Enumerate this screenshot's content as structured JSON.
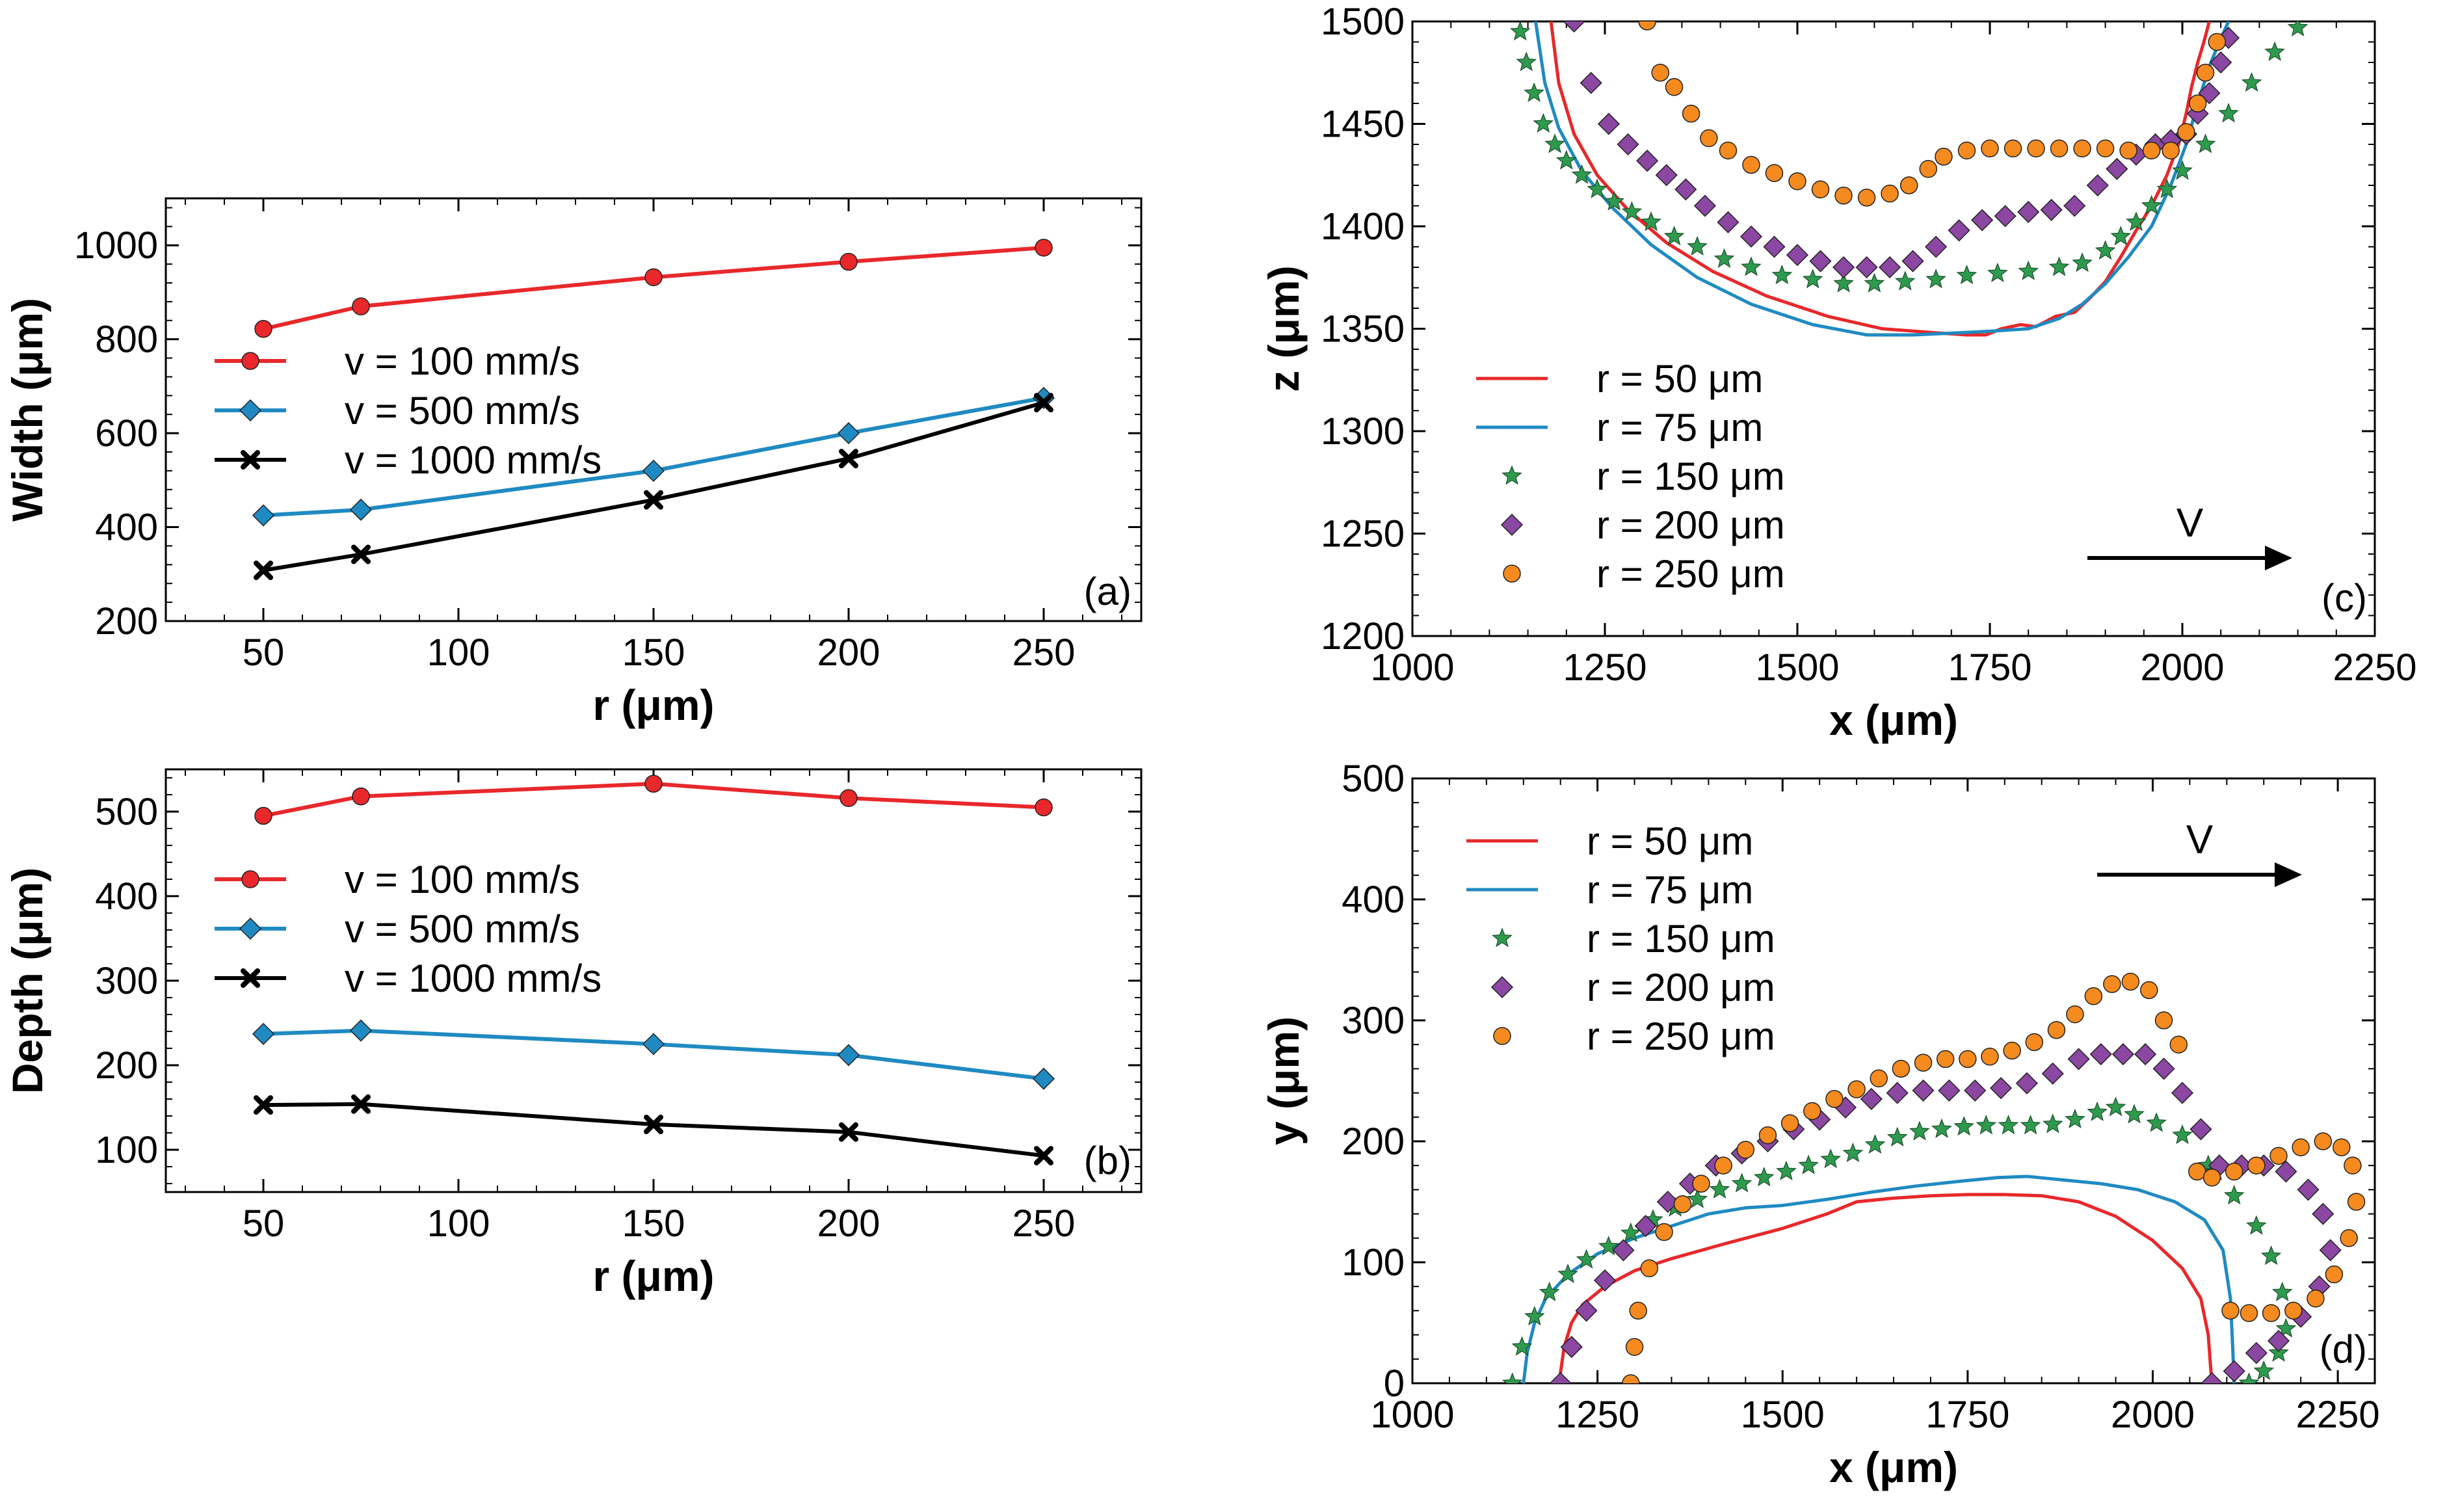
{
  "chart_data": [
    {
      "id": "a",
      "type": "line",
      "panel_label": "(a)",
      "xlabel": "r (μm)",
      "ylabel": "Width (μm)",
      "xlim": [
        25,
        275
      ],
      "ylim": [
        200,
        1100
      ],
      "xticks": [
        50,
        100,
        150,
        200,
        250
      ],
      "yticks": [
        200,
        400,
        600,
        800,
        1000
      ],
      "legend_position": "center-left",
      "series": [
        {
          "name": "v = 100 mm/s",
          "color": "#e8282b",
          "marker": "circle",
          "x": [
            50,
            75,
            150,
            200,
            250
          ],
          "y": [
            822,
            870,
            932,
            965,
            995
          ]
        },
        {
          "name": "v = 500 mm/s",
          "color": "#1f8ac2",
          "marker": "diamond",
          "x": [
            50,
            75,
            150,
            200,
            250
          ],
          "y": [
            425,
            437,
            520,
            600,
            675
          ]
        },
        {
          "name": "v = 1000 mm/s",
          "color": "#000000",
          "marker": "x",
          "x": [
            50,
            75,
            150,
            200,
            250
          ],
          "y": [
            308,
            342,
            458,
            546,
            665
          ]
        }
      ]
    },
    {
      "id": "b",
      "type": "line",
      "panel_label": "(b)",
      "xlabel": "r (μm)",
      "ylabel": "Depth (μm)",
      "xlim": [
        25,
        275
      ],
      "ylim": [
        50,
        550
      ],
      "xticks": [
        50,
        100,
        150,
        200,
        250
      ],
      "yticks": [
        100,
        200,
        300,
        400,
        500
      ],
      "legend_position": "center-left",
      "series": [
        {
          "name": "v = 100 mm/s",
          "color": "#e8282b",
          "marker": "circle",
          "x": [
            50,
            75,
            150,
            200,
            250
          ],
          "y": [
            495,
            518,
            533,
            516,
            505
          ]
        },
        {
          "name": "v = 500 mm/s",
          "color": "#1f8ac2",
          "marker": "diamond",
          "x": [
            50,
            75,
            150,
            200,
            250
          ],
          "y": [
            237,
            241,
            225,
            212,
            184
          ]
        },
        {
          "name": "v = 1000 mm/s",
          "color": "#000000",
          "marker": "x",
          "x": [
            50,
            75,
            150,
            200,
            250
          ],
          "y": [
            153,
            154,
            130,
            121,
            93
          ]
        }
      ]
    },
    {
      "id": "c",
      "type": "scatter",
      "panel_label": "(c)",
      "xlabel": "x (μm)",
      "ylabel": "z (μm)",
      "xlim": [
        1000,
        2250
      ],
      "ylim": [
        1200,
        1500
      ],
      "xticks": [
        1000,
        1250,
        1500,
        1750,
        2000,
        2250
      ],
      "yticks": [
        1200,
        1250,
        1300,
        1350,
        1400,
        1450,
        1500
      ],
      "legend_position": "lower-left",
      "arrow_label": "V",
      "series": [
        {
          "name": "r = 50 μm",
          "color": "#e8282b",
          "marker": "line",
          "x": [
            1180,
            1190,
            1210,
            1240,
            1280,
            1330,
            1390,
            1460,
            1540,
            1610,
            1680,
            1720,
            1745,
            1765,
            1790,
            1810,
            1835,
            1860,
            1880,
            1900,
            1920,
            1940,
            1960,
            1980,
            1995,
            2005,
            2012,
            2020,
            2028,
            2035
          ],
          "y": [
            1500,
            1470,
            1445,
            1425,
            1408,
            1392,
            1378,
            1366,
            1356,
            1350,
            1348,
            1347,
            1347,
            1350,
            1352,
            1351,
            1356,
            1358,
            1365,
            1373,
            1385,
            1398,
            1410,
            1425,
            1440,
            1455,
            1468,
            1480,
            1490,
            1500
          ]
        },
        {
          "name": "r = 75 μm",
          "color": "#1f8ac2",
          "marker": "line",
          "x": [
            1160,
            1172,
            1190,
            1220,
            1260,
            1310,
            1370,
            1440,
            1520,
            1590,
            1650,
            1710,
            1760,
            1800,
            1840,
            1870,
            1900,
            1930,
            1960,
            1985,
            2005,
            2020,
            2035,
            2048,
            2060
          ],
          "y": [
            1500,
            1470,
            1448,
            1427,
            1409,
            1391,
            1375,
            1362,
            1352,
            1347,
            1347,
            1348,
            1349,
            1350,
            1355,
            1362,
            1372,
            1385,
            1400,
            1420,
            1440,
            1460,
            1478,
            1490,
            1500
          ]
        },
        {
          "name": "r = 150 μm",
          "color": "#2e9a4e",
          "marker": "star",
          "x": [
            1140,
            1148,
            1158,
            1170,
            1185,
            1200,
            1220,
            1240,
            1262,
            1285,
            1310,
            1340,
            1370,
            1405,
            1440,
            1480,
            1520,
            1560,
            1600,
            1640,
            1680,
            1720,
            1760,
            1800,
            1840,
            1870,
            1900,
            1920,
            1940,
            1960,
            1980,
            2000,
            2030,
            2060,
            2090,
            2120,
            2150
          ],
          "y": [
            1495,
            1480,
            1465,
            1450,
            1440,
            1432,
            1425,
            1418,
            1412,
            1407,
            1402,
            1395,
            1390,
            1384,
            1380,
            1376,
            1374,
            1372,
            1372,
            1373,
            1374,
            1376,
            1377,
            1378,
            1380,
            1382,
            1388,
            1395,
            1402,
            1410,
            1418,
            1427,
            1440,
            1455,
            1470,
            1485,
            1497
          ]
        },
        {
          "name": "r = 200 μm",
          "color": "#8b47a1",
          "marker": "diamond",
          "x": [
            1210,
            1232,
            1255,
            1280,
            1305,
            1330,
            1355,
            1380,
            1410,
            1440,
            1470,
            1500,
            1530,
            1560,
            1590,
            1620,
            1650,
            1680,
            1710,
            1740,
            1770,
            1800,
            1830,
            1860,
            1890,
            1915,
            1940,
            1965,
            1985,
            2005,
            2020,
            2035,
            2050,
            2060
          ],
          "y": [
            1500,
            1470,
            1450,
            1440,
            1432,
            1425,
            1418,
            1410,
            1402,
            1395,
            1390,
            1386,
            1383,
            1380,
            1380,
            1380,
            1383,
            1390,
            1398,
            1403,
            1405,
            1407,
            1408,
            1410,
            1420,
            1428,
            1435,
            1440,
            1442,
            1445,
            1455,
            1465,
            1480,
            1492
          ]
        },
        {
          "name": "r = 250 μm",
          "color": "#f58a1f",
          "marker": "circle",
          "x": [
            1305,
            1322,
            1340,
            1362,
            1385,
            1410,
            1440,
            1470,
            1500,
            1530,
            1560,
            1590,
            1620,
            1645,
            1670,
            1690,
            1720,
            1750,
            1780,
            1810,
            1840,
            1870,
            1900,
            1930,
            1960,
            1985,
            2005,
            2020,
            2030,
            2045
          ],
          "y": [
            1500,
            1475,
            1468,
            1455,
            1443,
            1437,
            1430,
            1426,
            1422,
            1418,
            1415,
            1414,
            1416,
            1420,
            1428,
            1434,
            1437,
            1438,
            1438,
            1438,
            1438,
            1438,
            1438,
            1437,
            1437,
            1437,
            1446,
            1460,
            1475,
            1490
          ]
        }
      ]
    },
    {
      "id": "d",
      "type": "scatter",
      "panel_label": "(d)",
      "xlabel": "x (μm)",
      "ylabel": "y (μm)",
      "xlim": [
        1000,
        2300
      ],
      "ylim": [
        0,
        500
      ],
      "xticks": [
        1000,
        1250,
        1500,
        1750,
        2000,
        2250
      ],
      "yticks": [
        0,
        100,
        200,
        300,
        400,
        500
      ],
      "legend_position": "top-left",
      "arrow_label": "V",
      "series": [
        {
          "name": "r = 50 μm",
          "color": "#e8282b",
          "marker": "line",
          "x": [
            1198,
            1205,
            1215,
            1230,
            1260,
            1300,
            1350,
            1420,
            1500,
            1560,
            1600,
            1650,
            1700,
            1750,
            1800,
            1850,
            1900,
            1950,
            2000,
            2040,
            2065,
            2075,
            2078,
            2080
          ],
          "y": [
            0,
            30,
            50,
            65,
            80,
            93,
            103,
            115,
            128,
            140,
            150,
            153,
            155,
            156,
            156,
            155,
            150,
            138,
            118,
            95,
            70,
            40,
            15,
            0
          ]
        },
        {
          "name": "r = 75 μm",
          "color": "#1f8ac2",
          "marker": "line",
          "x": [
            1150,
            1155,
            1165,
            1180,
            1210,
            1250,
            1300,
            1350,
            1400,
            1450,
            1500,
            1560,
            1620,
            1680,
            1740,
            1790,
            1830,
            1880,
            1930,
            1980,
            2030,
            2070,
            2095,
            2105,
            2108,
            2110
          ],
          "y": [
            0,
            25,
            50,
            70,
            90,
            107,
            120,
            130,
            140,
            145,
            147,
            152,
            158,
            163,
            167,
            170,
            171,
            168,
            165,
            160,
            150,
            135,
            110,
            70,
            30,
            0
          ]
        },
        {
          "name": "r = 150 μm",
          "color": "#2e9a4e",
          "marker": "star",
          "x": [
            1135,
            1148,
            1165,
            1185,
            1210,
            1235,
            1265,
            1295,
            1325,
            1355,
            1385,
            1415,
            1445,
            1475,
            1505,
            1535,
            1565,
            1595,
            1625,
            1655,
            1685,
            1715,
            1745,
            1775,
            1805,
            1835,
            1865,
            1895,
            1925,
            1950,
            1975,
            2005,
            2040,
            2075,
            2085,
            2110,
            2140,
            2160,
            2175,
            2180,
            2170,
            2150,
            2130
          ],
          "y": [
            0,
            30,
            55,
            75,
            90,
            102,
            113,
            124,
            135,
            145,
            152,
            160,
            165,
            170,
            175,
            180,
            185,
            190,
            197,
            203,
            208,
            210,
            212,
            213,
            213,
            213,
            214,
            218,
            224,
            228,
            222,
            215,
            205,
            180,
            175,
            155,
            130,
            105,
            75,
            45,
            25,
            10,
            0
          ]
        },
        {
          "name": "r = 200 μm",
          "color": "#8b47a1",
          "marker": "diamond",
          "x": [
            1200,
            1215,
            1235,
            1260,
            1285,
            1315,
            1345,
            1375,
            1410,
            1445,
            1480,
            1515,
            1550,
            1585,
            1620,
            1655,
            1690,
            1725,
            1760,
            1795,
            1830,
            1865,
            1900,
            1930,
            1960,
            1990,
            2015,
            2040,
            2065,
            2090,
            2120,
            2150,
            2180,
            2210,
            2230,
            2240,
            2225,
            2200,
            2170,
            2140,
            2110,
            2080
          ],
          "y": [
            0,
            30,
            60,
            85,
            110,
            130,
            150,
            165,
            180,
            190,
            200,
            210,
            218,
            228,
            235,
            240,
            242,
            242,
            242,
            244,
            248,
            256,
            268,
            272,
            272,
            272,
            260,
            240,
            210,
            180,
            180,
            180,
            175,
            160,
            140,
            110,
            80,
            55,
            35,
            25,
            10,
            0
          ]
        },
        {
          "name": "r = 250 μm",
          "color": "#f58a1f",
          "marker": "circle",
          "x": [
            1295,
            1300,
            1305,
            1320,
            1340,
            1365,
            1390,
            1420,
            1450,
            1480,
            1510,
            1540,
            1570,
            1600,
            1630,
            1660,
            1690,
            1720,
            1750,
            1780,
            1810,
            1840,
            1870,
            1895,
            1920,
            1945,
            1970,
            1995,
            2015,
            2035,
            2060,
            2080,
            2110,
            2140,
            2170,
            2200,
            2230,
            2255,
            2270,
            2275,
            2265,
            2245,
            2220,
            2190,
            2160,
            2130,
            2105
          ],
          "y": [
            0,
            30,
            60,
            95,
            125,
            148,
            165,
            180,
            193,
            205,
            215,
            225,
            235,
            243,
            252,
            260,
            265,
            268,
            268,
            270,
            275,
            282,
            292,
            305,
            320,
            330,
            332,
            325,
            300,
            280,
            175,
            170,
            175,
            180,
            188,
            195,
            200,
            195,
            180,
            150,
            120,
            90,
            70,
            60,
            58,
            58,
            60
          ]
        }
      ]
    }
  ]
}
